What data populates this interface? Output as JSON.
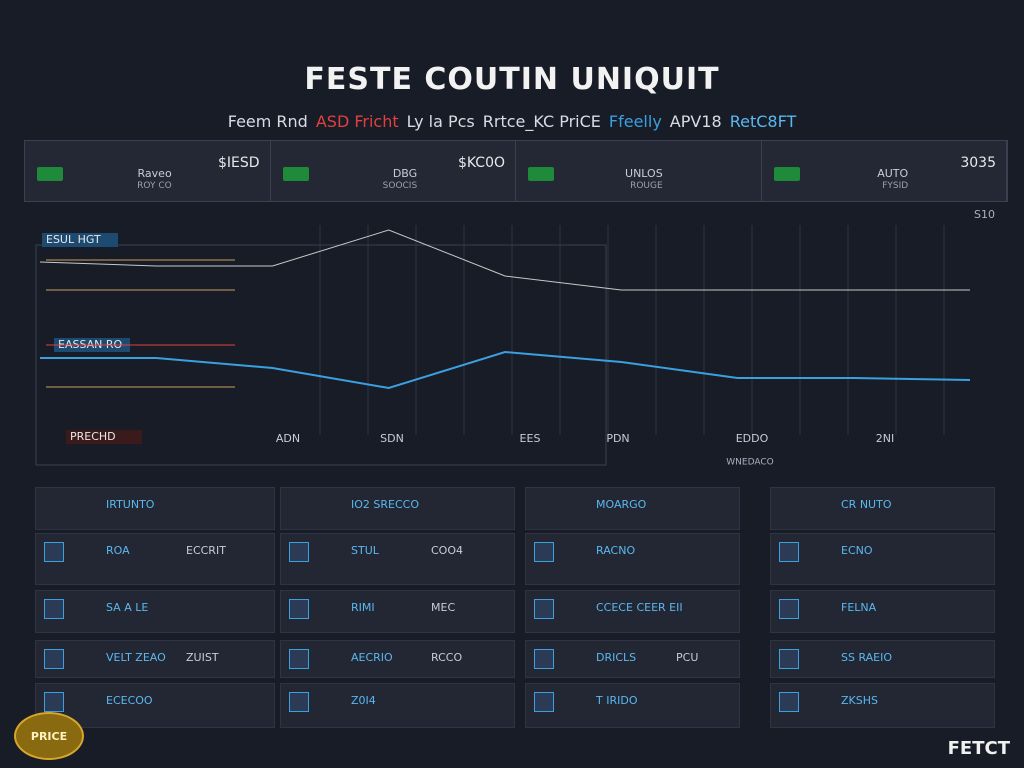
{
  "header": {
    "title": "FESTE COUTIN UNIQUIT",
    "subtitle": [
      "Feem Rnd",
      "ASD Fricht",
      "Ly la Pcs",
      "Rrtce_KC PriCE",
      "Ffeelly",
      "APV18",
      "RetC8FT"
    ]
  },
  "stats": [
    {
      "name": "Raveo",
      "sub": "ROY CO",
      "value": "$IESD"
    },
    {
      "name": "DBG",
      "sub": "SOOCIS",
      "value": "$KC0O"
    },
    {
      "name": "UNLOS",
      "sub": "ROUGE"
    },
    {
      "name": "AUTO",
      "sub": "FYSID",
      "value": "3035"
    }
  ],
  "chart": {
    "type": "line",
    "labels": [
      "ESUL HGT",
      "EASSAN RO",
      "PRECHD"
    ],
    "corner_label": "S10",
    "caption": "WNEDACO",
    "xlabels": [
      "ADN",
      "SDN",
      "EES",
      "PDN",
      "EDDO",
      "2NI"
    ],
    "series": [
      {
        "color": "#c8c8c8",
        "values": [
          104,
          102,
          102,
          120,
          97,
          90,
          90,
          90,
          90
        ]
      },
      {
        "color": "#3aa0e0",
        "values": [
          56,
          56,
          51,
          41,
          59,
          54,
          46,
          46,
          45
        ]
      }
    ]
  },
  "panels": [
    {
      "title": "IRTUNTO",
      "rows": [
        [
          "ROA",
          "ECCRIT"
        ],
        [
          "SA A LE"
        ],
        [
          "VELT ZEAO",
          "ZUIST"
        ],
        [
          "ECECOO"
        ]
      ]
    },
    {
      "title": "IO2 SRECCO",
      "rows": [
        [
          "STUL",
          "COO4"
        ],
        [
          "RIMI",
          "MEC"
        ],
        [
          "AECRIO",
          "RCCO"
        ],
        [
          "Z0I4"
        ]
      ]
    },
    {
      "title": "MOARGO",
      "rows": [
        [
          "RACNO"
        ],
        [
          "CCECE CEER EII"
        ],
        [
          "DRICLS",
          "PCU"
        ],
        [
          "T IRIDO"
        ]
      ]
    },
    {
      "title": "CR NUTO",
      "rows": [
        [
          "ECNO"
        ],
        [
          "FELNA"
        ],
        [
          "SS RAEIO"
        ],
        [
          "ZKSHS"
        ]
      ]
    }
  ],
  "footer": {
    "brand": "FETCT",
    "badge": "PRICE"
  }
}
